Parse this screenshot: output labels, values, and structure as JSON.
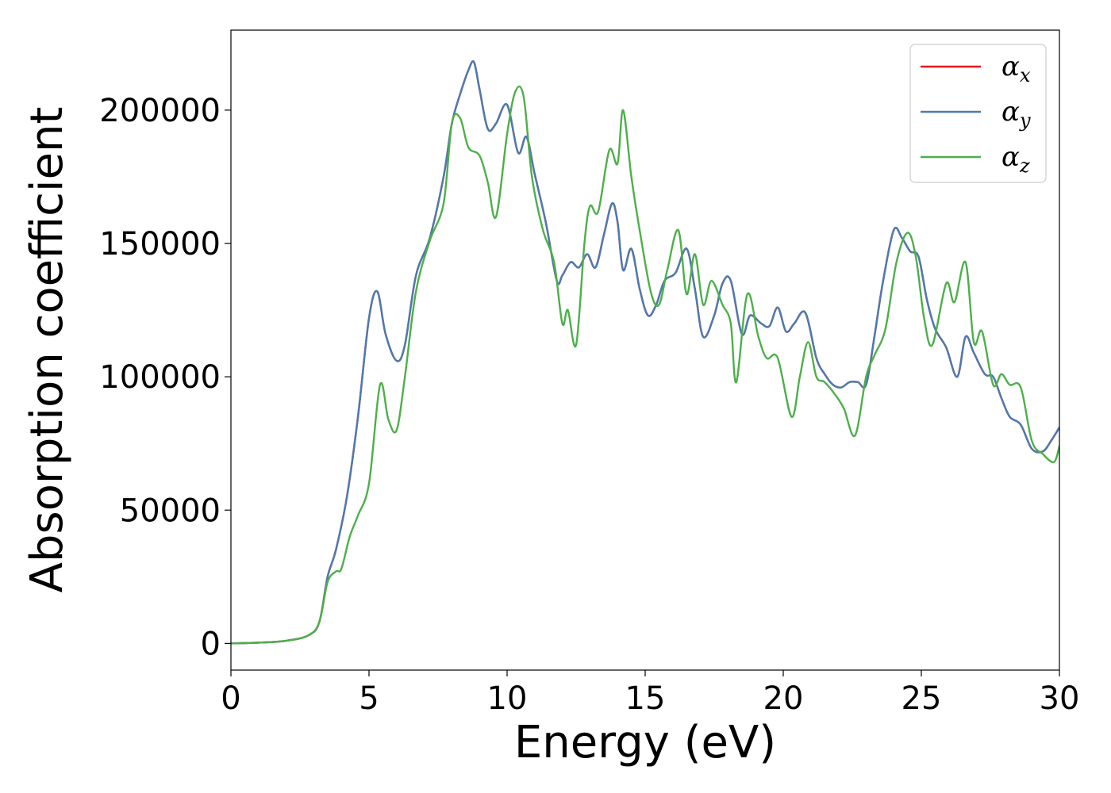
{
  "chart_data": {
    "type": "line",
    "title": "",
    "xlabel": "Energy (eV)",
    "ylabel": "Absorption coefficient",
    "xlim": [
      0,
      30
    ],
    "ylim": [
      -10000,
      230000
    ],
    "xticks": [
      0,
      5,
      10,
      15,
      20,
      25,
      30
    ],
    "xtick_labels": [
      "0",
      "5",
      "10",
      "15",
      "20",
      "25",
      "30"
    ],
    "yticks": [
      0,
      50000,
      100000,
      150000,
      200000
    ],
    "ytick_labels": [
      "0",
      "50000",
      "100000",
      "150000",
      "200000"
    ],
    "grid": false,
    "legend_position": "top-right",
    "series": [
      {
        "name": "αx",
        "symbol": "α",
        "subscript": "x",
        "color": "#e41a1c",
        "x": [
          0,
          1,
          2,
          2.8,
          3.2,
          3.5,
          3.8,
          4.2,
          4.6,
          5.0,
          5.3,
          5.6,
          6.0,
          6.3,
          6.7,
          7.2,
          7.7,
          8.0,
          8.3,
          8.6,
          8.8,
          9.0,
          9.3,
          9.6,
          10.0,
          10.4,
          10.7,
          11.0,
          11.4,
          11.8,
          12.0,
          12.3,
          12.6,
          12.9,
          13.2,
          13.5,
          13.8,
          14.0,
          14.2,
          14.5,
          14.8,
          15.1,
          15.4,
          15.7,
          16.1,
          16.5,
          16.8,
          17.1,
          17.5,
          17.8,
          18.1,
          18.5,
          18.8,
          19.2,
          19.5,
          19.8,
          20.1,
          20.4,
          20.8,
          21.2,
          21.5,
          21.8,
          22.1,
          22.4,
          22.7,
          23.0,
          23.3,
          23.6,
          24.0,
          24.3,
          24.6,
          24.9,
          25.2,
          25.5,
          25.9,
          26.3,
          26.6,
          26.9,
          27.3,
          27.6,
          27.9,
          28.2,
          28.6,
          29.0,
          29.4,
          29.7,
          30.0
        ],
        "y": [
          0,
          300,
          1000,
          3000,
          8000,
          25000,
          35000,
          55000,
          85000,
          122000,
          132000,
          116000,
          106000,
          112000,
          138000,
          152000,
          175000,
          195000,
          206000,
          215000,
          218000,
          208000,
          193000,
          195000,
          202000,
          184000,
          190000,
          176000,
          158000,
          136000,
          138000,
          143000,
          141000,
          146000,
          141000,
          153000,
          165000,
          158000,
          140000,
          148000,
          133000,
          123000,
          127000,
          136000,
          139000,
          148000,
          133000,
          115000,
          123000,
          135000,
          136000,
          116000,
          123000,
          120000,
          119000,
          126000,
          117000,
          120000,
          124000,
          107000,
          101000,
          97000,
          96000,
          98000,
          98000,
          97000,
          115000,
          135000,
          155000,
          152000,
          147000,
          145000,
          129000,
          118000,
          111000,
          100000,
          115000,
          109000,
          101000,
          100000,
          92000,
          85000,
          82000,
          73000,
          72000,
          76000,
          81000
        ]
      },
      {
        "name": "αy",
        "symbol": "α",
        "subscript": "y",
        "color": "#4a7bb0",
        "x": [
          0,
          1,
          2,
          2.8,
          3.2,
          3.5,
          3.8,
          4.2,
          4.6,
          5.0,
          5.3,
          5.6,
          6.0,
          6.3,
          6.7,
          7.2,
          7.7,
          8.0,
          8.3,
          8.6,
          8.8,
          9.0,
          9.3,
          9.6,
          10.0,
          10.4,
          10.7,
          11.0,
          11.4,
          11.8,
          12.0,
          12.3,
          12.6,
          12.9,
          13.2,
          13.5,
          13.8,
          14.0,
          14.2,
          14.5,
          14.8,
          15.1,
          15.4,
          15.7,
          16.1,
          16.5,
          16.8,
          17.1,
          17.5,
          17.8,
          18.1,
          18.5,
          18.8,
          19.2,
          19.5,
          19.8,
          20.1,
          20.4,
          20.8,
          21.2,
          21.5,
          21.8,
          22.1,
          22.4,
          22.7,
          23.0,
          23.3,
          23.6,
          24.0,
          24.3,
          24.6,
          24.9,
          25.2,
          25.5,
          25.9,
          26.3,
          26.6,
          26.9,
          27.3,
          27.6,
          27.9,
          28.2,
          28.6,
          29.0,
          29.4,
          29.7,
          30.0
        ],
        "y": [
          0,
          300,
          1000,
          3000,
          8000,
          25000,
          35000,
          55000,
          85000,
          122000,
          132000,
          116000,
          106000,
          112000,
          138000,
          152000,
          175000,
          195000,
          206000,
          215000,
          218000,
          208000,
          193000,
          195000,
          202000,
          184000,
          190000,
          176000,
          158000,
          136000,
          138000,
          143000,
          141000,
          146000,
          141000,
          153000,
          165000,
          158000,
          140000,
          148000,
          133000,
          123000,
          127000,
          136000,
          139000,
          148000,
          133000,
          115000,
          123000,
          135000,
          136000,
          116000,
          123000,
          120000,
          119000,
          126000,
          117000,
          120000,
          124000,
          107000,
          101000,
          97000,
          96000,
          98000,
          98000,
          97000,
          115000,
          135000,
          155000,
          152000,
          147000,
          145000,
          129000,
          118000,
          111000,
          100000,
          115000,
          109000,
          101000,
          100000,
          92000,
          85000,
          82000,
          73000,
          72000,
          76000,
          81000
        ]
      },
      {
        "name": "αz",
        "symbol": "α",
        "subscript": "z",
        "color": "#4daf4a",
        "x": [
          0,
          1,
          2,
          2.8,
          3.2,
          3.5,
          3.8,
          4.0,
          4.3,
          4.6,
          5.0,
          5.4,
          5.7,
          6.0,
          6.3,
          6.7,
          7.2,
          7.7,
          8.0,
          8.3,
          8.6,
          9.0,
          9.3,
          9.6,
          10.0,
          10.3,
          10.6,
          10.9,
          11.3,
          11.7,
          12.0,
          12.2,
          12.5,
          12.8,
          13.0,
          13.3,
          13.7,
          14.0,
          14.2,
          14.5,
          14.8,
          15.2,
          15.5,
          15.8,
          16.2,
          16.5,
          16.8,
          17.1,
          17.4,
          17.8,
          18.1,
          18.3,
          18.7,
          19.1,
          19.4,
          19.8,
          20.3,
          20.6,
          20.9,
          21.2,
          21.5,
          21.9,
          22.2,
          22.6,
          23.0,
          23.3,
          23.7,
          24.1,
          24.5,
          24.8,
          25.1,
          25.4,
          25.9,
          26.2,
          26.6,
          26.9,
          27.2,
          27.6,
          27.9,
          28.2,
          28.6,
          29.0,
          29.4,
          29.8,
          30.0
        ],
        "y": [
          0,
          300,
          1000,
          3000,
          8000,
          23000,
          27000,
          28000,
          40000,
          48000,
          60000,
          97000,
          84000,
          80000,
          100000,
          132000,
          151000,
          165000,
          195000,
          197000,
          186000,
          183000,
          173000,
          160000,
          191000,
          207000,
          205000,
          175000,
          155000,
          143000,
          120000,
          125000,
          112000,
          150000,
          164000,
          162000,
          185000,
          180000,
          200000,
          175000,
          155000,
          132000,
          127000,
          140000,
          155000,
          131000,
          146000,
          127000,
          136000,
          127000,
          120000,
          98000,
          131000,
          115000,
          107000,
          107000,
          85000,
          100000,
          113000,
          100000,
          98000,
          93000,
          88000,
          78000,
          100000,
          108000,
          118000,
          143000,
          154000,
          145000,
          122000,
          112000,
          135000,
          128000,
          143000,
          113000,
          117000,
          97000,
          101000,
          97000,
          96000,
          76000,
          71000,
          68000,
          74000
        ]
      }
    ]
  }
}
